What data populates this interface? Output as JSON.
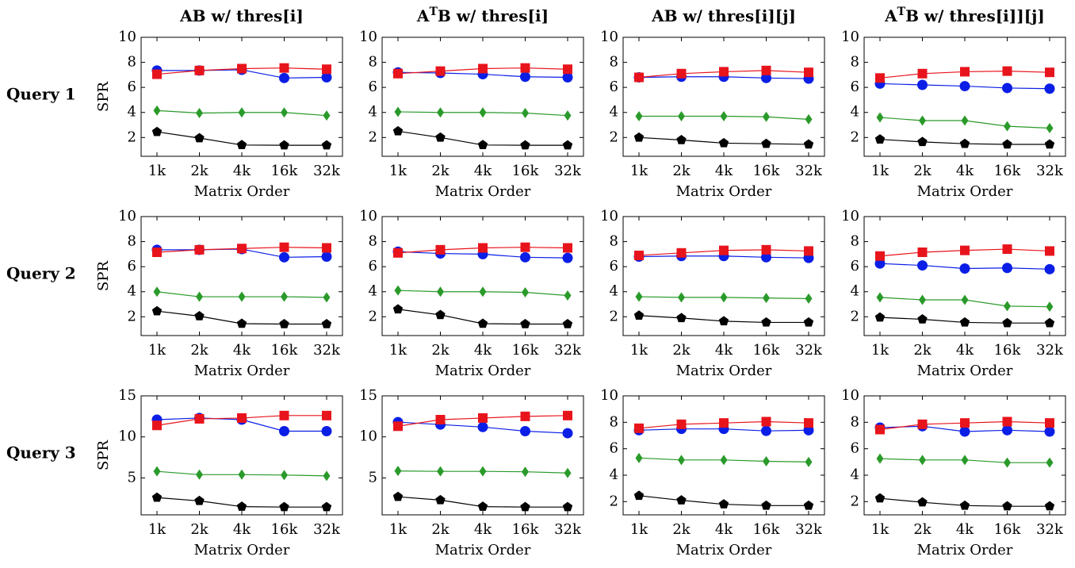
{
  "chart_data": {
    "type": "line",
    "layout": "3x4 grid of small multiples",
    "x_label": "Matrix Order",
    "y_label": "SPR",
    "categories": [
      "1k",
      "2k",
      "4k",
      "16k",
      "32k"
    ],
    "columns": [
      {
        "title": "AB w/ thres[i]"
      },
      {
        "title": "ATB w/ thres[i]",
        "title_base": "A",
        "title_sup": "T",
        "title_rest": "B w/ thres[i]"
      },
      {
        "title": "AB w/ thres[i][j]"
      },
      {
        "title": "ATB w/ thres[i]][j]",
        "title_base": "A",
        "title_sup": "T",
        "title_rest": "B w/ thres[i]][j]"
      }
    ],
    "rows": [
      {
        "title": "Query 1"
      },
      {
        "title": "Query 2"
      },
      {
        "title": "Query 3"
      }
    ],
    "series_styles": [
      {
        "color": "#e8141c",
        "marker": "square"
      },
      {
        "color": "#0a1ee6",
        "marker": "circle"
      },
      {
        "color": "#2a9a2a",
        "marker": "diamond"
      },
      {
        "color": "#000000",
        "marker": "pentagon"
      }
    ],
    "panels": [
      {
        "row": 0,
        "col": 0,
        "ylim": [
          0.5,
          10
        ],
        "yticks": [
          2,
          4,
          6,
          8,
          10
        ],
        "series": [
          [
            7.05,
            7.35,
            7.5,
            7.55,
            7.45
          ],
          [
            7.35,
            7.35,
            7.4,
            6.75,
            6.8
          ],
          [
            4.15,
            3.95,
            4.0,
            4.0,
            3.75
          ],
          [
            2.45,
            1.95,
            1.4,
            1.38,
            1.38
          ]
        ]
      },
      {
        "row": 0,
        "col": 1,
        "ylim": [
          0.5,
          10
        ],
        "yticks": [
          2,
          4,
          6,
          8,
          10
        ],
        "series": [
          [
            7.1,
            7.3,
            7.5,
            7.55,
            7.45
          ],
          [
            7.2,
            7.15,
            7.05,
            6.85,
            6.8
          ],
          [
            4.05,
            4.0,
            4.0,
            3.95,
            3.75
          ],
          [
            2.5,
            2.0,
            1.4,
            1.38,
            1.38
          ]
        ]
      },
      {
        "row": 0,
        "col": 2,
        "ylim": [
          0.5,
          10
        ],
        "yticks": [
          2,
          4,
          6,
          8,
          10
        ],
        "series": [
          [
            6.8,
            7.1,
            7.25,
            7.35,
            7.2
          ],
          [
            6.8,
            6.85,
            6.85,
            6.75,
            6.7
          ],
          [
            3.7,
            3.7,
            3.7,
            3.65,
            3.45
          ],
          [
            2.0,
            1.8,
            1.55,
            1.5,
            1.45
          ]
        ]
      },
      {
        "row": 0,
        "col": 3,
        "ylim": [
          0.5,
          10
        ],
        "yticks": [
          2,
          4,
          6,
          8,
          10
        ],
        "series": [
          [
            6.75,
            7.1,
            7.25,
            7.3,
            7.2
          ],
          [
            6.3,
            6.2,
            6.1,
            5.95,
            5.9
          ],
          [
            3.6,
            3.35,
            3.35,
            2.9,
            2.75
          ],
          [
            1.85,
            1.65,
            1.5,
            1.45,
            1.45
          ]
        ]
      },
      {
        "row": 1,
        "col": 0,
        "ylim": [
          0.5,
          10
        ],
        "yticks": [
          2,
          4,
          6,
          8,
          10
        ],
        "series": [
          [
            7.15,
            7.35,
            7.45,
            7.55,
            7.5
          ],
          [
            7.35,
            7.35,
            7.4,
            6.75,
            6.8
          ],
          [
            4.0,
            3.6,
            3.6,
            3.6,
            3.55
          ],
          [
            2.45,
            2.05,
            1.45,
            1.42,
            1.42
          ]
        ]
      },
      {
        "row": 1,
        "col": 1,
        "ylim": [
          0.5,
          10
        ],
        "yticks": [
          2,
          4,
          6,
          8,
          10
        ],
        "series": [
          [
            7.1,
            7.35,
            7.5,
            7.55,
            7.5
          ],
          [
            7.2,
            7.05,
            7.0,
            6.75,
            6.7
          ],
          [
            4.1,
            4.0,
            4.0,
            3.95,
            3.7
          ],
          [
            2.6,
            2.15,
            1.45,
            1.42,
            1.42
          ]
        ]
      },
      {
        "row": 1,
        "col": 2,
        "ylim": [
          0.5,
          10
        ],
        "yticks": [
          2,
          4,
          6,
          8,
          10
        ],
        "series": [
          [
            6.9,
            7.1,
            7.3,
            7.35,
            7.25
          ],
          [
            6.8,
            6.85,
            6.85,
            6.75,
            6.7
          ],
          [
            3.6,
            3.55,
            3.55,
            3.5,
            3.45
          ],
          [
            2.1,
            1.9,
            1.65,
            1.55,
            1.55
          ]
        ]
      },
      {
        "row": 1,
        "col": 3,
        "ylim": [
          0.5,
          10
        ],
        "yticks": [
          2,
          4,
          6,
          8,
          10
        ],
        "series": [
          [
            6.85,
            7.15,
            7.3,
            7.4,
            7.25
          ],
          [
            6.25,
            6.1,
            5.85,
            5.9,
            5.8
          ],
          [
            3.55,
            3.35,
            3.35,
            2.85,
            2.8
          ],
          [
            1.95,
            1.8,
            1.55,
            1.5,
            1.5
          ]
        ]
      },
      {
        "row": 2,
        "col": 0,
        "ylim": [
          0.5,
          15
        ],
        "yticks": [
          5,
          10,
          15
        ],
        "series": [
          [
            11.4,
            12.2,
            12.3,
            12.6,
            12.6
          ],
          [
            12.1,
            12.3,
            12.1,
            10.7,
            10.7
          ],
          [
            5.8,
            5.4,
            5.4,
            5.35,
            5.25
          ],
          [
            2.6,
            2.2,
            1.5,
            1.45,
            1.45
          ]
        ]
      },
      {
        "row": 2,
        "col": 1,
        "ylim": [
          0.5,
          15
        ],
        "yticks": [
          5,
          10,
          15
        ],
        "series": [
          [
            11.3,
            12.1,
            12.3,
            12.5,
            12.6
          ],
          [
            11.8,
            11.5,
            11.2,
            10.7,
            10.45
          ],
          [
            5.85,
            5.8,
            5.8,
            5.75,
            5.6
          ],
          [
            2.7,
            2.3,
            1.5,
            1.45,
            1.45
          ]
        ]
      },
      {
        "row": 2,
        "col": 2,
        "ylim": [
          1,
          10
        ],
        "yticks": [
          2,
          4,
          6,
          8,
          10
        ],
        "series": [
          [
            7.55,
            7.85,
            7.95,
            8.05,
            7.95
          ],
          [
            7.4,
            7.5,
            7.5,
            7.35,
            7.4
          ],
          [
            5.3,
            5.15,
            5.15,
            5.05,
            5.0
          ],
          [
            2.45,
            2.1,
            1.8,
            1.7,
            1.7
          ]
        ]
      },
      {
        "row": 2,
        "col": 3,
        "ylim": [
          1,
          10
        ],
        "yticks": [
          2,
          4,
          6,
          8,
          10
        ],
        "series": [
          [
            7.45,
            7.85,
            7.95,
            8.05,
            7.95
          ],
          [
            7.6,
            7.7,
            7.3,
            7.4,
            7.3
          ],
          [
            5.25,
            5.15,
            5.15,
            4.95,
            4.95
          ],
          [
            2.25,
            1.95,
            1.7,
            1.65,
            1.65
          ]
        ]
      }
    ]
  }
}
